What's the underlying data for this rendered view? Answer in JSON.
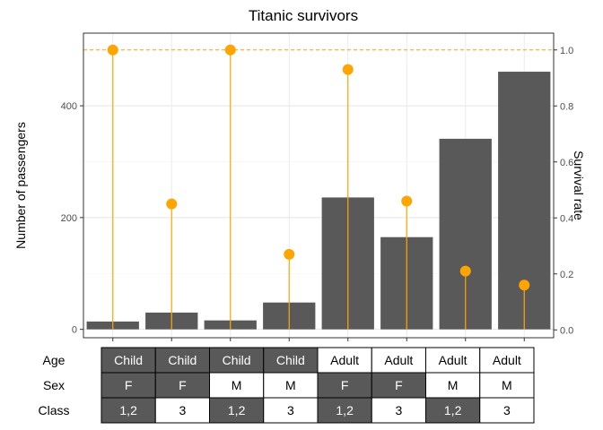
{
  "chart_data": {
    "type": "bar",
    "title": "Titanic survivors",
    "ylabel": "Number of passengers",
    "y2label": "Survival rate",
    "ylim": [
      -15,
      530
    ],
    "y2lim": [
      -0.028,
      1.06
    ],
    "yticks": [
      0,
      200,
      400
    ],
    "y2ticks": [
      0.0,
      0.2,
      0.4,
      0.6,
      0.8,
      1.0
    ],
    "y2tick_labels": [
      "0.0",
      "0.2",
      "0.4",
      "0.6",
      "0.8",
      "1.0"
    ],
    "grid": true,
    "reference_line": 1.0,
    "categories": [
      "Child F 1,2",
      "Child F 3",
      "Child M 1,2",
      "Child M 3",
      "Adult F 1,2",
      "Adult F 3",
      "Adult M 1,2",
      "Adult M 3"
    ],
    "series": [
      {
        "values": [
          14,
          30,
          16,
          48,
          236,
          165,
          341,
          461
        ]
      },
      {
        "values": [
          1.0,
          0.45,
          1.0,
          0.27,
          0.93,
          0.46,
          0.21,
          0.16
        ]
      }
    ],
    "colors": {
      "bar": "#595959",
      "survival": "#FFA500",
      "cell_dark": "#595959",
      "cell_light": "#ffffff"
    },
    "table": {
      "row_labels": [
        "Age",
        "Sex",
        "Class"
      ],
      "rows": [
        [
          "Child",
          "Child",
          "Child",
          "Child",
          "Adult",
          "Adult",
          "Adult",
          "Adult"
        ],
        [
          "F",
          "F",
          "M",
          "M",
          "F",
          "F",
          "M",
          "M"
        ],
        [
          "1,2",
          "3",
          "1,2",
          "3",
          "1,2",
          "3",
          "1,2",
          "3"
        ]
      ],
      "dark": [
        [
          true,
          true,
          true,
          true,
          false,
          false,
          false,
          false
        ],
        [
          true,
          true,
          false,
          false,
          true,
          true,
          false,
          false
        ],
        [
          true,
          false,
          true,
          false,
          true,
          false,
          true,
          false
        ]
      ]
    }
  }
}
